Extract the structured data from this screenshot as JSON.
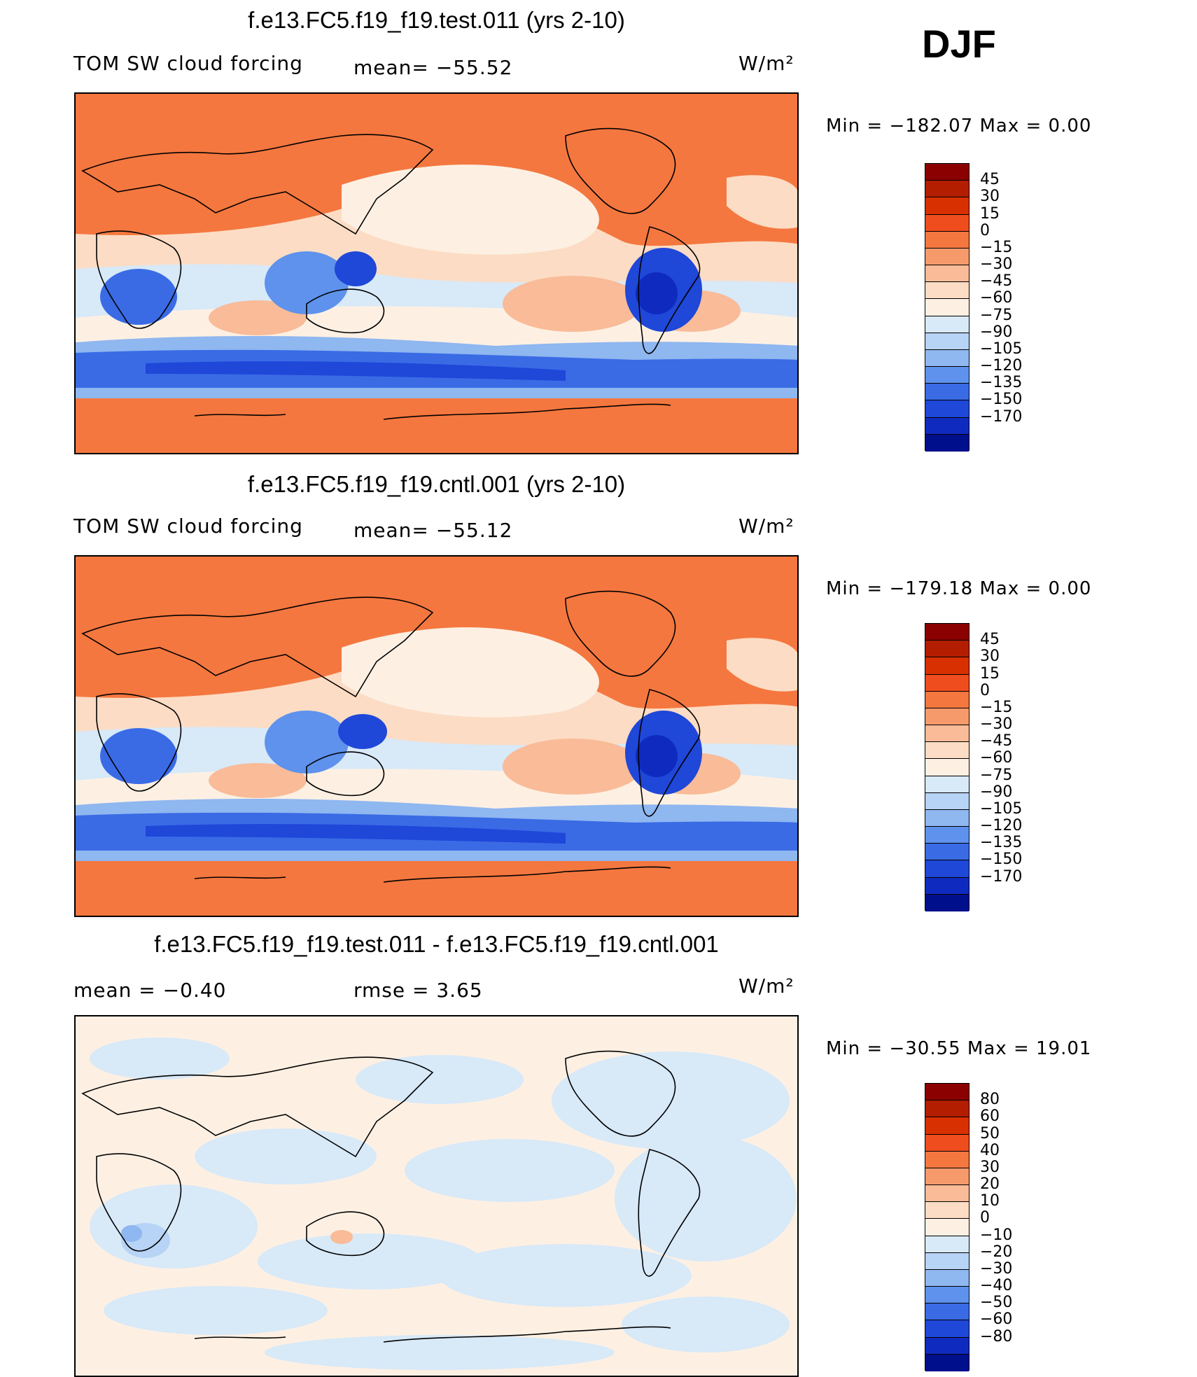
{
  "season": "DJF",
  "units": "W/m²",
  "panels": [
    {
      "title": "f.e13.FC5.f19_f19.test.011 (yrs 2-10)",
      "variable": "TOM SW cloud forcing",
      "stat1": "mean=  −55.52",
      "stat2": "",
      "minmax": "Min  =  −182.07  Max  =       0.00",
      "colorbar": {
        "labels": [
          "45",
          "30",
          "15",
          "0",
          "−15",
          "−30",
          "−45",
          "−60",
          "−75",
          "−90",
          "−105",
          "−120",
          "−135",
          "−150",
          "−170"
        ],
        "colors": [
          "#8b0000",
          "#b31d00",
          "#d83000",
          "#f04d1f",
          "#f4773f",
          "#f79a6b",
          "#f9bb98",
          "#fcdcc4",
          "#fdf0e3",
          "#d8e9f8",
          "#b7d3f5",
          "#8fb7f0",
          "#5e92ec",
          "#3a6be5",
          "#1f47d8",
          "#0f2bbf",
          "#000f8c"
        ]
      },
      "chart_data": {
        "type": "heatmap",
        "title": "f.e13.FC5.f19_f19.test.011 (yrs 2-10)",
        "variable": "TOM SW cloud forcing",
        "units": "W/m²",
        "mean": -55.52,
        "min": -182.07,
        "max": 0.0,
        "contour_levels": [
          -170,
          -150,
          -135,
          -120,
          -105,
          -90,
          -75,
          -60,
          -45,
          -30,
          -15,
          0,
          15,
          30,
          45
        ]
      }
    },
    {
      "title": "f.e13.FC5.f19_f19.cntl.001 (yrs 2-10)",
      "variable": "TOM SW cloud forcing",
      "stat1": "mean=  −55.12",
      "stat2": "",
      "minmax": "Min  =  −179.18  Max  =       0.00",
      "colorbar": {
        "labels": [
          "45",
          "30",
          "15",
          "0",
          "−15",
          "−30",
          "−45",
          "−60",
          "−75",
          "−90",
          "−105",
          "−120",
          "−135",
          "−150",
          "−170"
        ],
        "colors": [
          "#8b0000",
          "#b31d00",
          "#d83000",
          "#f04d1f",
          "#f4773f",
          "#f79a6b",
          "#f9bb98",
          "#fcdcc4",
          "#fdf0e3",
          "#d8e9f8",
          "#b7d3f5",
          "#8fb7f0",
          "#5e92ec",
          "#3a6be5",
          "#1f47d8",
          "#0f2bbf",
          "#000f8c"
        ]
      },
      "chart_data": {
        "type": "heatmap",
        "title": "f.e13.FC5.f19_f19.cntl.001 (yrs 2-10)",
        "variable": "TOM SW cloud forcing",
        "units": "W/m²",
        "mean": -55.12,
        "min": -179.18,
        "max": 0.0,
        "contour_levels": [
          -170,
          -150,
          -135,
          -120,
          -105,
          -90,
          -75,
          -60,
          -45,
          -30,
          -15,
          0,
          15,
          30,
          45
        ]
      }
    },
    {
      "title": "f.e13.FC5.f19_f19.test.011 - f.e13.FC5.f19_f19.cntl.001",
      "variable": "mean  =     −0.40",
      "stat1": "rmse  =       3.65",
      "stat2": "",
      "minmax": "Min  =  −30.55  Max  =    19.01",
      "colorbar": {
        "labels": [
          "80",
          "60",
          "50",
          "40",
          "30",
          "20",
          "10",
          "0",
          "−10",
          "−20",
          "−30",
          "−40",
          "−50",
          "−60",
          "−80"
        ],
        "colors": [
          "#8b0000",
          "#b31d00",
          "#d83000",
          "#f04d1f",
          "#f4773f",
          "#f79a6b",
          "#f9bb98",
          "#fcdcc4",
          "#fdf0e3",
          "#d8e9f8",
          "#b7d3f5",
          "#8fb7f0",
          "#5e92ec",
          "#3a6be5",
          "#1f47d8",
          "#0f2bbf",
          "#000f8c"
        ]
      },
      "chart_data": {
        "type": "heatmap",
        "title": "f.e13.FC5.f19_f19.test.011 - f.e13.FC5.f19_f19.cntl.001",
        "units": "W/m²",
        "mean": -0.4,
        "rmse": 3.65,
        "min": -30.55,
        "max": 19.01,
        "contour_levels": [
          -80,
          -60,
          -50,
          -40,
          -30,
          -20,
          -10,
          0,
          10,
          20,
          30,
          40,
          50,
          60,
          80
        ]
      }
    }
  ]
}
